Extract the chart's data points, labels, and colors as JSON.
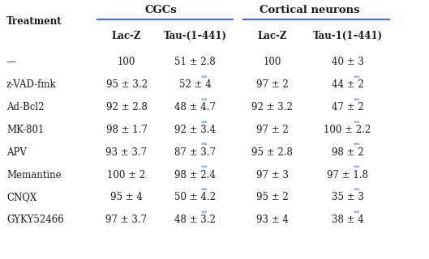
{
  "title_cgcs": "CGCs",
  "title_cortical": "Cortical neurons",
  "col_headers": [
    "Lac-Z",
    "Tau-(1–441)",
    "Lac-Z",
    "Tau-1(1–441)"
  ],
  "row_labels": [
    "—",
    "z-VAD-fmk",
    "Ad-Bcl2",
    "MK-801",
    "APV",
    "Memantine",
    "CNQX",
    "GYKY52466"
  ],
  "data": [
    [
      "100",
      "51 ± 2.8",
      "100",
      "40 ± 3"
    ],
    [
      "95 ± 3.2",
      "52 ± 4",
      "97 ± 2",
      "44 ± 2"
    ],
    [
      "92 ± 2.8",
      "48 ± 4.7",
      "92 ± 3.2",
      "47 ± 2"
    ],
    [
      "98 ± 1.7",
      "92 ± 3.4",
      "97 ± 2",
      "100 ± 2.2"
    ],
    [
      "93 ± 3.7",
      "87 ± 3.7",
      "95 ± 2.8",
      "98 ± 2"
    ],
    [
      "100 ± 2",
      "98 ± 2.4",
      "97 ± 3",
      "97 ± 1.8"
    ],
    [
      "95 ± 4",
      "50 ± 4.2",
      "95 ± 2",
      "35 ± 3"
    ],
    [
      "97 ± 3.7",
      "48 ± 3.2",
      "93 ± 4",
      "38 ± 4"
    ]
  ],
  "superscript_cols": [
    1,
    3
  ],
  "superscript_rows": [
    1,
    2,
    3,
    4,
    5,
    6,
    7
  ],
  "line_color": "#4472C4",
  "text_color": "#1a1a1a",
  "star_color": "#4472C4",
  "header_color": "#1a1a1a",
  "bg_color": "#ffffff",
  "fig_width": 5.29,
  "fig_height": 3.2,
  "dpi": 100
}
